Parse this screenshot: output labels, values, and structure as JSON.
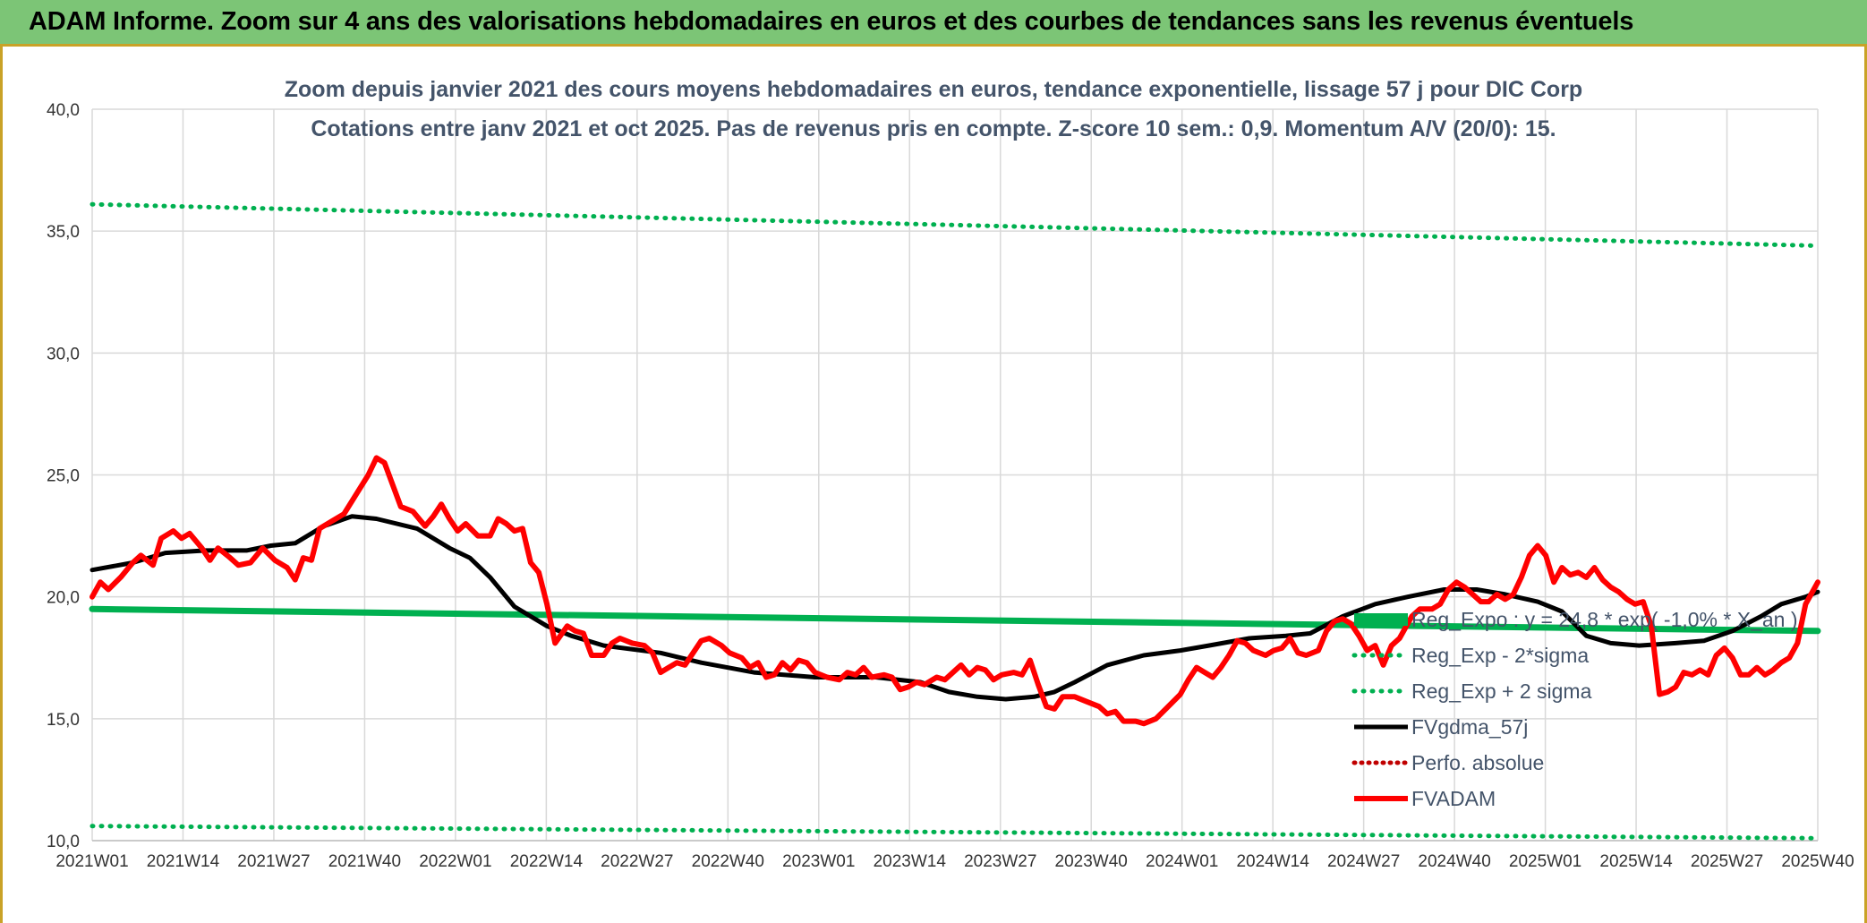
{
  "banner": {
    "title": "ADAM Informe. Zoom sur 4 ans des valorisations hebdomadaires en euros et des courbes de tendances sans les revenus éventuels"
  },
  "colors": {
    "banner_bg": "#7cc576",
    "regression": "#00b050",
    "fvadam": "#ff0000",
    "fvgdma": "#000000",
    "perfo": "#c00000",
    "title_text": "#44546a",
    "grid": "#d9d9d9"
  },
  "chart_data": {
    "type": "line",
    "title_lines": [
      "Zoom depuis janvier 2021 des cours moyens hebdomadaires en euros, tendance exponentielle, lissage 57 j pour DIC Corp",
      "Cotations entre janv 2021 et oct 2025. Pas de revenus pris en compte. Z-score 10 sem.: 0,9. Momentum A/V (20/0): 15."
    ],
    "x_count": 250,
    "x_tick_labels": [
      "2021W01",
      "2021W14",
      "2021W27",
      "2021W40",
      "2022W01",
      "2022W14",
      "2022W27",
      "2022W40",
      "2023W01",
      "2023W14",
      "2023W27",
      "2023W40",
      "2024W01",
      "2024W14",
      "2024W27",
      "2024W40",
      "2025W01",
      "2025W14",
      "2025W27",
      "2025W40"
    ],
    "y_tick_labels": [
      "10,0",
      "15,0",
      "20,0",
      "25,0",
      "30,0",
      "35,0",
      "40,0"
    ],
    "ylim": [
      10,
      40
    ],
    "y_ticks": [
      10,
      15,
      20,
      25,
      30,
      35,
      40
    ],
    "series": [
      {
        "name": "Reg_Expo : y = 24,8 * exp( -1,0% * X_an )",
        "key": "reg",
        "style": "solid-thick",
        "kind": "linear",
        "start": 19.5,
        "end": 18.6
      },
      {
        "name": "Reg_Exp - 2*sigma",
        "key": "reg_minus",
        "style": "dotted",
        "kind": "linear",
        "start": 10.6,
        "end": 10.1
      },
      {
        "name": "Reg_Exp + 2 sigma",
        "key": "reg_plus",
        "style": "dotted",
        "kind": "linear",
        "start": 36.1,
        "end": 34.4
      },
      {
        "name": "FVgdma_57j",
        "key": "fvgdma",
        "style": "solid",
        "kind": "points",
        "points": [
          [
            0,
            21.1
          ],
          [
            10,
            21.4
          ],
          [
            18,
            21.8
          ],
          [
            28,
            21.9
          ],
          [
            38,
            21.9
          ],
          [
            44,
            22.1
          ],
          [
            50,
            22.2
          ],
          [
            57,
            22.9
          ],
          [
            64,
            23.3
          ],
          [
            70,
            23.2
          ],
          [
            80,
            22.8
          ],
          [
            88,
            22.0
          ],
          [
            93,
            21.6
          ],
          [
            98,
            20.8
          ],
          [
            104,
            19.6
          ],
          [
            112,
            18.8
          ],
          [
            118,
            18.4
          ],
          [
            126,
            18.0
          ],
          [
            140,
            17.7
          ],
          [
            150,
            17.3
          ],
          [
            163,
            16.9
          ],
          [
            178,
            16.7
          ],
          [
            193,
            16.7
          ],
          [
            204,
            16.5
          ],
          [
            211,
            16.1
          ],
          [
            218,
            15.9
          ],
          [
            225,
            15.8
          ],
          [
            232,
            15.9
          ],
          [
            237,
            16.1
          ],
          [
            242,
            16.5
          ],
          [
            250,
            17.2
          ],
          [
            259,
            17.6
          ],
          [
            268,
            17.8
          ],
          [
            275,
            18.0
          ],
          [
            285,
            18.3
          ],
          [
            294,
            18.4
          ],
          [
            300,
            18.5
          ],
          [
            308,
            19.2
          ],
          [
            316,
            19.7
          ],
          [
            324,
            20.0
          ],
          [
            333,
            20.3
          ],
          [
            341,
            20.3
          ],
          [
            348,
            20.1
          ],
          [
            356,
            19.8
          ],
          [
            362,
            19.4
          ],
          [
            368,
            18.4
          ],
          [
            374,
            18.1
          ],
          [
            381,
            18.0
          ],
          [
            390,
            18.1
          ],
          [
            397,
            18.2
          ],
          [
            404,
            18.6
          ],
          [
            411,
            19.2
          ],
          [
            416,
            19.7
          ],
          [
            422,
            20.0
          ],
          [
            425,
            20.2
          ]
        ]
      },
      {
        "name": "Perfo. absolue",
        "key": "perfo",
        "style": "dotted",
        "kind": "none"
      },
      {
        "name": "FVADAM",
        "key": "fvadam",
        "style": "solid-thick",
        "kind": "points",
        "points": [
          [
            0,
            20.0
          ],
          [
            2,
            20.6
          ],
          [
            4,
            20.3
          ],
          [
            7,
            20.8
          ],
          [
            10,
            21.4
          ],
          [
            12,
            21.7
          ],
          [
            15,
            21.3
          ],
          [
            17,
            22.4
          ],
          [
            20,
            22.7
          ],
          [
            22,
            22.4
          ],
          [
            24,
            22.6
          ],
          [
            27,
            22.0
          ],
          [
            29,
            21.5
          ],
          [
            31,
            22.0
          ],
          [
            34,
            21.6
          ],
          [
            36,
            21.3
          ],
          [
            39,
            21.4
          ],
          [
            42,
            22.0
          ],
          [
            45,
            21.5
          ],
          [
            48,
            21.2
          ],
          [
            50,
            20.7
          ],
          [
            52,
            21.6
          ],
          [
            54,
            21.5
          ],
          [
            56,
            22.8
          ],
          [
            59,
            23.1
          ],
          [
            62,
            23.4
          ],
          [
            65,
            24.2
          ],
          [
            68,
            25.0
          ],
          [
            70,
            25.7
          ],
          [
            72,
            25.5
          ],
          [
            74,
            24.6
          ],
          [
            76,
            23.7
          ],
          [
            79,
            23.5
          ],
          [
            82,
            22.9
          ],
          [
            84,
            23.3
          ],
          [
            86,
            23.8
          ],
          [
            88,
            23.2
          ],
          [
            90,
            22.7
          ],
          [
            92,
            23.0
          ],
          [
            95,
            22.5
          ],
          [
            98,
            22.5
          ],
          [
            100,
            23.2
          ],
          [
            102,
            23.0
          ],
          [
            104,
            22.7
          ],
          [
            106,
            22.8
          ],
          [
            108,
            21.4
          ],
          [
            110,
            21.0
          ],
          [
            112,
            19.7
          ],
          [
            114,
            18.1
          ],
          [
            117,
            18.8
          ],
          [
            119,
            18.6
          ],
          [
            121,
            18.5
          ],
          [
            123,
            17.6
          ],
          [
            126,
            17.6
          ],
          [
            128,
            18.1
          ],
          [
            130,
            18.3
          ],
          [
            133,
            18.1
          ],
          [
            136,
            18.0
          ],
          [
            138,
            17.7
          ],
          [
            140,
            16.9
          ],
          [
            142,
            17.1
          ],
          [
            144,
            17.3
          ],
          [
            146,
            17.2
          ],
          [
            148,
            17.7
          ],
          [
            150,
            18.2
          ],
          [
            152,
            18.3
          ],
          [
            155,
            18.0
          ],
          [
            157,
            17.7
          ],
          [
            160,
            17.5
          ],
          [
            162,
            17.1
          ],
          [
            164,
            17.3
          ],
          [
            166,
            16.7
          ],
          [
            168,
            16.8
          ],
          [
            170,
            17.3
          ],
          [
            172,
            17.0
          ],
          [
            174,
            17.4
          ],
          [
            176,
            17.3
          ],
          [
            178,
            16.9
          ],
          [
            181,
            16.7
          ],
          [
            184,
            16.6
          ],
          [
            186,
            16.9
          ],
          [
            188,
            16.8
          ],
          [
            190,
            17.1
          ],
          [
            192,
            16.7
          ],
          [
            195,
            16.8
          ],
          [
            197,
            16.7
          ],
          [
            199,
            16.2
          ],
          [
            201,
            16.3
          ],
          [
            203,
            16.5
          ],
          [
            205,
            16.4
          ],
          [
            208,
            16.7
          ],
          [
            210,
            16.6
          ],
          [
            212,
            16.9
          ],
          [
            214,
            17.2
          ],
          [
            216,
            16.8
          ],
          [
            218,
            17.1
          ],
          [
            220,
            17.0
          ],
          [
            222,
            16.6
          ],
          [
            224,
            16.8
          ],
          [
            227,
            16.9
          ],
          [
            229,
            16.8
          ],
          [
            231,
            17.4
          ],
          [
            233,
            16.4
          ],
          [
            235,
            15.5
          ],
          [
            237,
            15.4
          ],
          [
            239,
            15.9
          ],
          [
            242,
            15.9
          ],
          [
            245,
            15.7
          ],
          [
            248,
            15.5
          ],
          [
            250,
            15.2
          ],
          [
            252,
            15.3
          ],
          [
            254,
            14.9
          ],
          [
            257,
            14.9
          ],
          [
            259,
            14.8
          ],
          [
            262,
            15.0
          ],
          [
            265,
            15.5
          ],
          [
            268,
            16.0
          ],
          [
            270,
            16.6
          ],
          [
            272,
            17.1
          ],
          [
            274,
            16.9
          ],
          [
            276,
            16.7
          ],
          [
            278,
            17.1
          ],
          [
            280,
            17.6
          ],
          [
            282,
            18.2
          ],
          [
            284,
            18.1
          ],
          [
            286,
            17.8
          ],
          [
            289,
            17.6
          ],
          [
            291,
            17.8
          ],
          [
            293,
            17.9
          ],
          [
            295,
            18.3
          ],
          [
            297,
            17.7
          ],
          [
            299,
            17.6
          ],
          [
            302,
            17.8
          ],
          [
            304,
            18.6
          ],
          [
            306,
            19.0
          ],
          [
            308,
            19.1
          ],
          [
            310,
            18.9
          ],
          [
            312,
            18.4
          ],
          [
            314,
            17.8
          ],
          [
            316,
            18.0
          ],
          [
            318,
            17.2
          ],
          [
            320,
            18.0
          ],
          [
            322,
            18.3
          ],
          [
            325,
            19.2
          ],
          [
            327,
            19.5
          ],
          [
            330,
            19.5
          ],
          [
            332,
            19.7
          ],
          [
            334,
            20.3
          ],
          [
            336,
            20.6
          ],
          [
            338,
            20.4
          ],
          [
            340,
            20.1
          ],
          [
            342,
            19.8
          ],
          [
            344,
            19.8
          ],
          [
            346,
            20.1
          ],
          [
            348,
            19.9
          ],
          [
            350,
            20.1
          ],
          [
            352,
            20.8
          ],
          [
            354,
            21.7
          ],
          [
            356,
            22.1
          ],
          [
            358,
            21.7
          ],
          [
            360,
            20.6
          ],
          [
            362,
            21.2
          ],
          [
            364,
            20.9
          ],
          [
            366,
            21.0
          ],
          [
            368,
            20.8
          ],
          [
            370,
            21.2
          ],
          [
            372,
            20.7
          ],
          [
            374,
            20.4
          ],
          [
            376,
            20.2
          ],
          [
            378,
            19.9
          ],
          [
            380,
            19.7
          ],
          [
            382,
            19.8
          ],
          [
            384,
            18.8
          ],
          [
            386,
            16.0
          ],
          [
            388,
            16.1
          ],
          [
            390,
            16.3
          ],
          [
            392,
            16.9
          ],
          [
            394,
            16.8
          ],
          [
            396,
            17.0
          ],
          [
            398,
            16.8
          ],
          [
            400,
            17.6
          ],
          [
            402,
            17.9
          ],
          [
            404,
            17.5
          ],
          [
            406,
            16.8
          ],
          [
            408,
            16.8
          ],
          [
            410,
            17.1
          ],
          [
            412,
            16.8
          ],
          [
            414,
            17.0
          ],
          [
            416,
            17.3
          ],
          [
            418,
            17.5
          ],
          [
            420,
            18.1
          ],
          [
            422,
            19.7
          ],
          [
            424,
            20.3
          ],
          [
            425,
            20.6
          ]
        ]
      }
    ],
    "x_scale_max": 425
  }
}
